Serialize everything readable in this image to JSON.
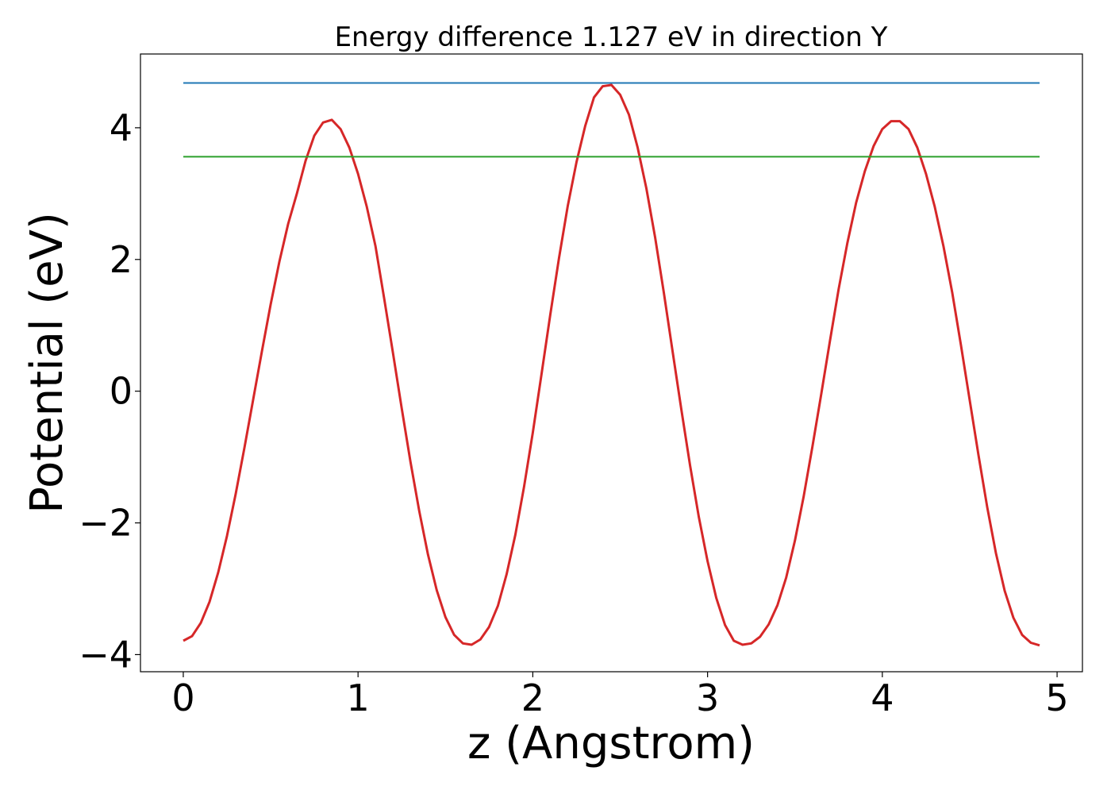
{
  "chart_data": {
    "type": "line",
    "title": "Energy difference 1.127 eV in direction Y",
    "xlabel": "z (Angstrom)",
    "ylabel": "Potential (eV)",
    "xlim": [
      -0.245,
      5.145
    ],
    "ylim": [
      -4.26,
      5.12
    ],
    "xticks": [
      0,
      1,
      2,
      3,
      4,
      5
    ],
    "yticks": [
      -4,
      -2,
      0,
      2,
      4
    ],
    "xtick_labels": [
      "0",
      "1",
      "2",
      "3",
      "4",
      "5"
    ],
    "ytick_labels": [
      "−4",
      "−2",
      "0",
      "2",
      "4"
    ],
    "grid": false,
    "legend": null,
    "series": [
      {
        "color": "#d62728",
        "x": [
          0.0,
          0.05,
          0.1,
          0.15,
          0.2,
          0.25,
          0.3,
          0.35,
          0.4,
          0.45,
          0.5,
          0.55,
          0.6,
          0.65,
          0.7,
          0.75,
          0.8,
          0.85,
          0.9,
          0.95,
          1.0,
          1.05,
          1.1,
          1.15,
          1.2,
          1.25,
          1.3,
          1.35,
          1.4,
          1.45,
          1.5,
          1.55,
          1.6,
          1.65,
          1.7,
          1.75,
          1.8,
          1.85,
          1.9,
          1.95,
          2.0,
          2.05,
          2.1,
          2.15,
          2.2,
          2.25,
          2.3,
          2.35,
          2.4,
          2.45,
          2.5,
          2.55,
          2.6,
          2.65,
          2.7,
          2.75,
          2.8,
          2.85,
          2.9,
          2.95,
          3.0,
          3.05,
          3.1,
          3.15,
          3.2,
          3.25,
          3.3,
          3.35,
          3.4,
          3.45,
          3.5,
          3.55,
          3.6,
          3.65,
          3.7,
          3.75,
          3.8,
          3.85,
          3.9,
          3.95,
          4.0,
          4.05,
          4.1,
          4.15,
          4.2,
          4.25,
          4.3,
          4.35,
          4.4,
          4.45,
          4.5,
          4.55,
          4.6,
          4.65,
          4.7,
          4.75,
          4.8,
          4.85,
          4.9
        ],
        "y": [
          -3.79,
          -3.72,
          -3.52,
          -3.2,
          -2.75,
          -2.2,
          -1.56,
          -0.86,
          -0.13,
          0.61,
          1.32,
          1.97,
          2.54,
          3.0,
          3.5,
          3.88,
          4.08,
          4.12,
          3.98,
          3.7,
          3.3,
          2.8,
          2.2,
          1.4,
          0.58,
          -0.26,
          -1.07,
          -1.82,
          -2.48,
          -3.02,
          -3.43,
          -3.7,
          -3.83,
          -3.85,
          -3.77,
          -3.58,
          -3.26,
          -2.78,
          -2.18,
          -1.45,
          -0.63,
          0.26,
          1.16,
          2.02,
          2.81,
          3.48,
          4.03,
          4.46,
          4.63,
          4.65,
          4.5,
          4.2,
          3.7,
          3.08,
          2.33,
          1.49,
          0.6,
          -0.28,
          -1.13,
          -1.91,
          -2.58,
          -3.14,
          -3.55,
          -3.79,
          -3.85,
          -3.83,
          -3.73,
          -3.54,
          -3.25,
          -2.83,
          -2.27,
          -1.6,
          -0.84,
          -0.05,
          0.76,
          1.55,
          2.25,
          2.86,
          3.34,
          3.72,
          3.98,
          4.1,
          4.1,
          3.98,
          3.7,
          3.3,
          2.8,
          2.2,
          1.5,
          0.7,
          -0.14,
          -0.97,
          -1.76,
          -2.46,
          -3.03,
          -3.44,
          -3.7,
          -3.82,
          -3.86
        ]
      },
      {
        "color": "#1f77b4",
        "x": [
          0.0,
          4.9
        ],
        "y": [
          4.68,
          4.68
        ]
      },
      {
        "color": "#2ca02c",
        "x": [
          0.0,
          4.9
        ],
        "y": [
          3.56,
          3.56
        ]
      }
    ]
  }
}
